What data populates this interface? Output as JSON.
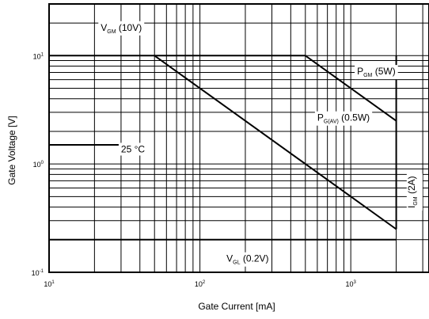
{
  "chart_data": {
    "type": "line",
    "title": "",
    "xlabel": "Gate Current [mA]",
    "ylabel": "Gate Voltage [V]",
    "xscale": "log",
    "yscale": "log",
    "xlim": [
      10,
      3300
    ],
    "ylim": [
      0.1,
      30
    ],
    "grid": true,
    "x_tick_labels": [
      {
        "value": 10,
        "base": "10",
        "exp": "1"
      },
      {
        "value": 100,
        "base": "10",
        "exp": "2"
      },
      {
        "value": 1000,
        "base": "10",
        "exp": "3"
      }
    ],
    "y_tick_labels": [
      {
        "value": 0.1,
        "base": "10",
        "exp": "-1"
      },
      {
        "value": 1,
        "base": "10",
        "exp": "0"
      },
      {
        "value": 10,
        "base": "10",
        "exp": "1"
      }
    ],
    "series": [
      {
        "name": "PGM (5W)",
        "x": [
          500,
          2000
        ],
        "y": [
          10,
          2.5
        ]
      },
      {
        "name": "PG(AV) (0.5W)",
        "x": [
          50,
          2000
        ],
        "y": [
          10,
          0.25
        ]
      },
      {
        "name": "VGM (10V)",
        "x": [
          10,
          500
        ],
        "y": [
          10,
          10
        ]
      },
      {
        "name": "IGM (2A)",
        "x": [
          2000,
          2000
        ],
        "y": [
          0.25,
          10
        ]
      },
      {
        "name": "VGL (0.2V)",
        "x": [
          10,
          2000
        ],
        "y": [
          0.2,
          0.2
        ]
      },
      {
        "name": "25 °C",
        "x": [
          10,
          30
        ],
        "y": [
          1.5,
          1.5
        ]
      }
    ],
    "annotations": [
      {
        "key": "vgm",
        "main": "V",
        "sub": "GM",
        "rest": " (10V)",
        "x": 22,
        "y": 17,
        "anchor": "start"
      },
      {
        "key": "pgm",
        "main": "P",
        "sub": "GM",
        "rest": " (5W)",
        "x": 1100,
        "y": 6.7,
        "anchor": "start"
      },
      {
        "key": "pgav",
        "main": "P",
        "sub": "G(AV)",
        "rest": " (0.5W)",
        "x": 600,
        "y": 2.5,
        "anchor": "start"
      },
      {
        "key": "temp",
        "main": "25 °C",
        "sub": "",
        "rest": "",
        "x": 30,
        "y": 1.28,
        "anchor": "start"
      },
      {
        "key": "vgl",
        "main": "V",
        "sub": "GL",
        "rest": " (0.2V)",
        "x": 150,
        "y": 0.125,
        "anchor": "start"
      }
    ],
    "vertical_annotation": {
      "main": "I",
      "sub": "GM",
      "rest": " (2A)",
      "x": 2650,
      "y": 0.55
    }
  }
}
